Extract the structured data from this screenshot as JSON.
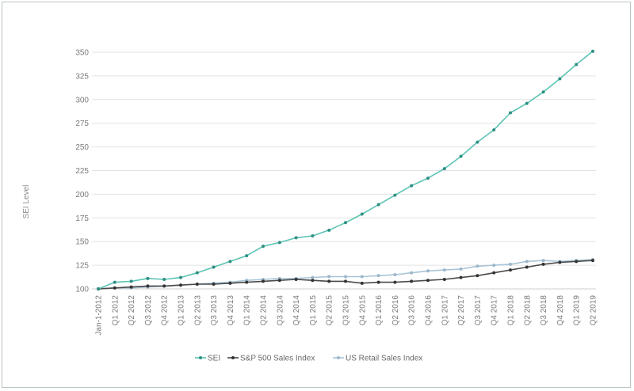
{
  "chart_data": {
    "type": "line",
    "title": "",
    "xlabel": "",
    "ylabel": "SEI Level",
    "ylim": [
      100,
      350
    ],
    "yticks": [
      100,
      125,
      150,
      175,
      200,
      225,
      250,
      275,
      300,
      325,
      350
    ],
    "grid": true,
    "legend_position": "bottom",
    "categories": [
      "Jan-1-2012",
      "Q1 2012",
      "Q2 2012",
      "Q3 2012",
      "Q4 2012",
      "Q1 2013",
      "Q2 2013",
      "Q3 2013",
      "Q4 2013",
      "Q1 2014",
      "Q2 2014",
      "Q3 2014",
      "Q4 2014",
      "Q1 2015",
      "Q2 2015",
      "Q3 2015",
      "Q4 2015",
      "Q1 2016",
      "Q2 2016",
      "Q3 2016",
      "Q4 2016",
      "Q1 2017",
      "Q2 2017",
      "Q3 2017",
      "Q4 2017",
      "Q1 2018",
      "Q2 2018",
      "Q3 2018",
      "Q4 2018",
      "Q1 2019",
      "Q2 2019"
    ],
    "series": [
      {
        "name": "SEI",
        "color": "#5cc4b4",
        "marker": "#2f8f83",
        "values": [
          100,
          107,
          108,
          111,
          110,
          112,
          117,
          123,
          129,
          135,
          145,
          149,
          154,
          156,
          162,
          170,
          179,
          189,
          199,
          209,
          217,
          227,
          240,
          255,
          268,
          286,
          296,
          308,
          322,
          337,
          351
        ]
      },
      {
        "name": "S&P 500 Sales Index",
        "color": "#4a4a4a",
        "marker": "#333333",
        "values": [
          100,
          101,
          102,
          103,
          103,
          104,
          105,
          105,
          106,
          107,
          108,
          109,
          110,
          109,
          108,
          108,
          106,
          107,
          107,
          108,
          109,
          110,
          112,
          114,
          117,
          120,
          123,
          126,
          128,
          129,
          130
        ]
      },
      {
        "name": "US Retail Sales Index",
        "color": "#a9c5d8",
        "marker": "#9db7ca",
        "values": [
          100,
          101,
          101,
          102,
          103,
          104,
          105,
          106,
          107,
          109,
          110,
          111,
          111,
          112,
          113,
          113,
          113,
          114,
          115,
          117,
          119,
          120,
          121,
          124,
          125,
          126,
          129,
          130,
          129,
          130,
          131
        ]
      }
    ]
  }
}
